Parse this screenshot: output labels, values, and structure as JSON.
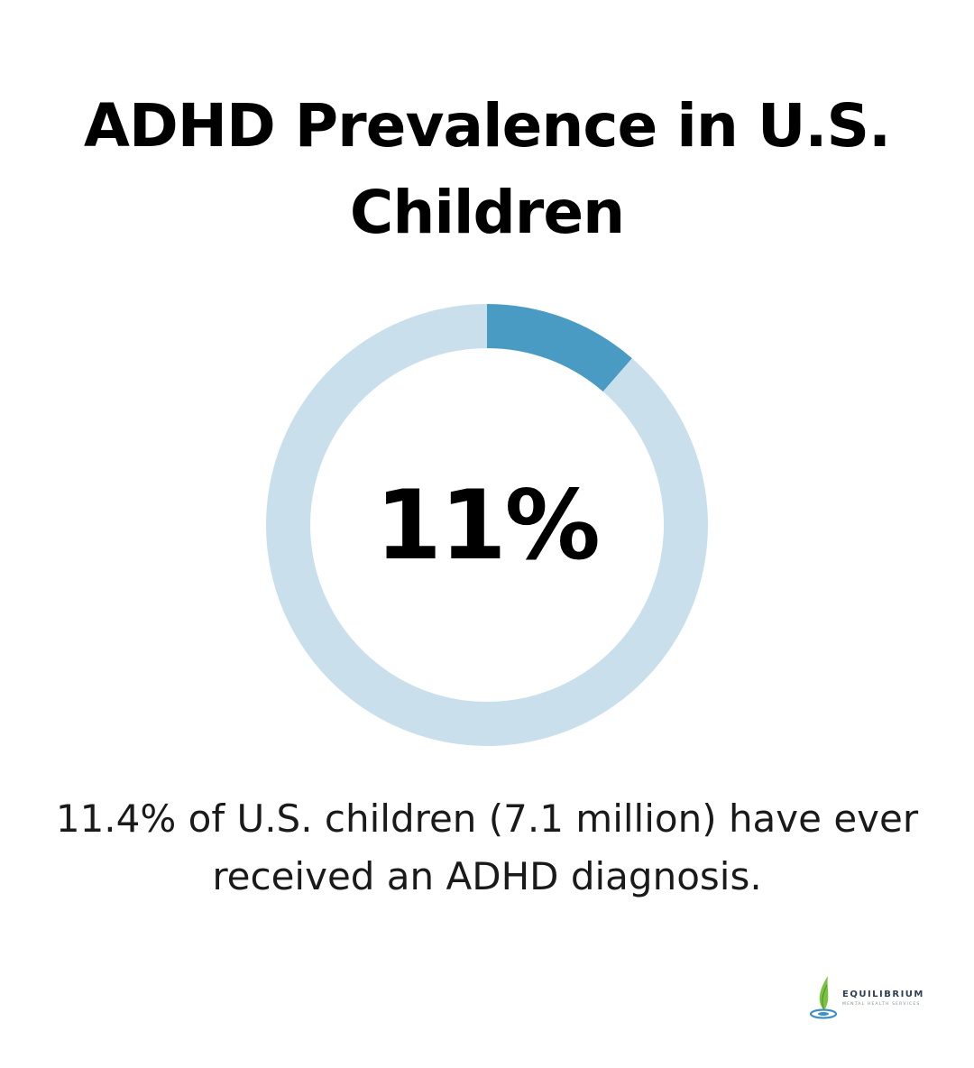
{
  "title": "ADHD Prevalence in U.S. Children",
  "center_value": "11%",
  "caption": "11.4% of U.S. children (7.1 million) have ever received an ADHD diagnosis.",
  "logo": {
    "name": "EQUILIBRIUM",
    "tagline": "MENTAL HEALTH SERVICES",
    "icon": "leaf-drop-icon"
  },
  "colors": {
    "accent": "#4a9bc4",
    "track": "#c9e0ec",
    "text": "#000000"
  },
  "chart_data": {
    "type": "pie",
    "values": [
      11.4,
      88.6
    ],
    "title": "ADHD Prevalence in U.S. Children"
  }
}
